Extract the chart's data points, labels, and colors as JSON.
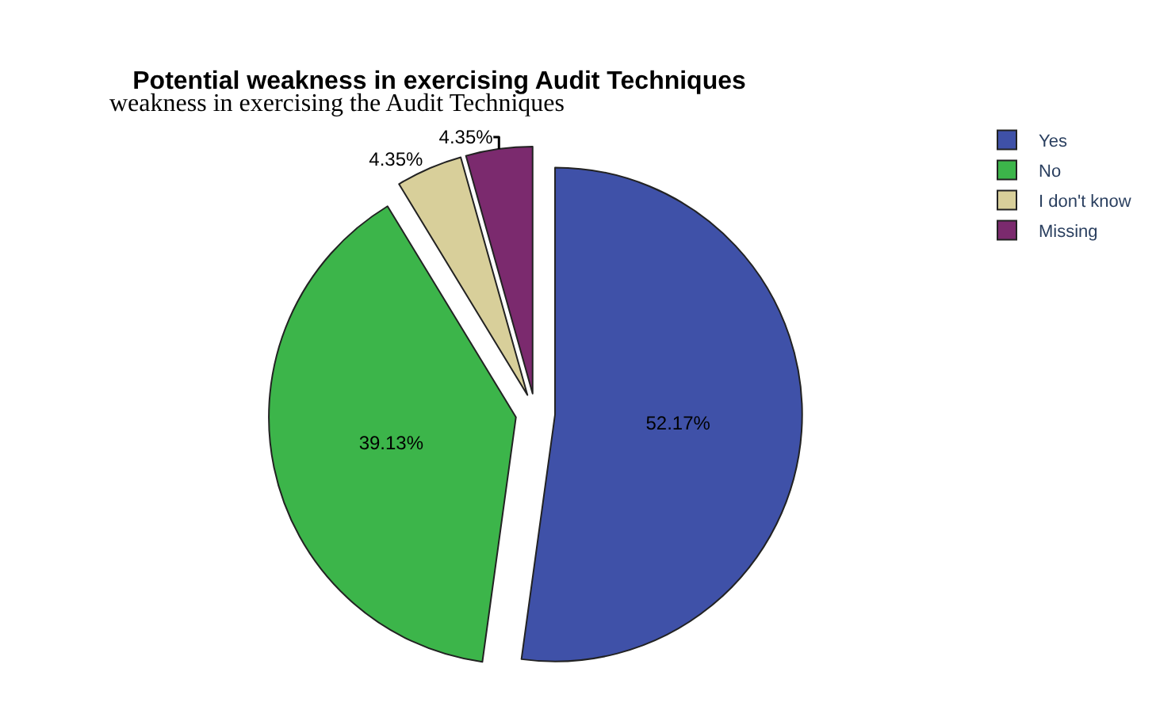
{
  "chart_data": {
    "type": "pie",
    "title": "Potential weakness in exercising Audit Techniques",
    "categories": [
      "Yes",
      "No",
      "I don't know",
      "Missing"
    ],
    "values": [
      52.17,
      39.13,
      4.35,
      4.35
    ],
    "value_labels": [
      "52.17%",
      "39.13%",
      "4.35%",
      "4.35%"
    ],
    "colors": [
      "#3f51a8",
      "#3cb54a",
      "#d8cf9a",
      "#7b2a6e"
    ],
    "legend": "top right",
    "annotations": [
      "weakness in exercising the Audit Techniques"
    ]
  }
}
